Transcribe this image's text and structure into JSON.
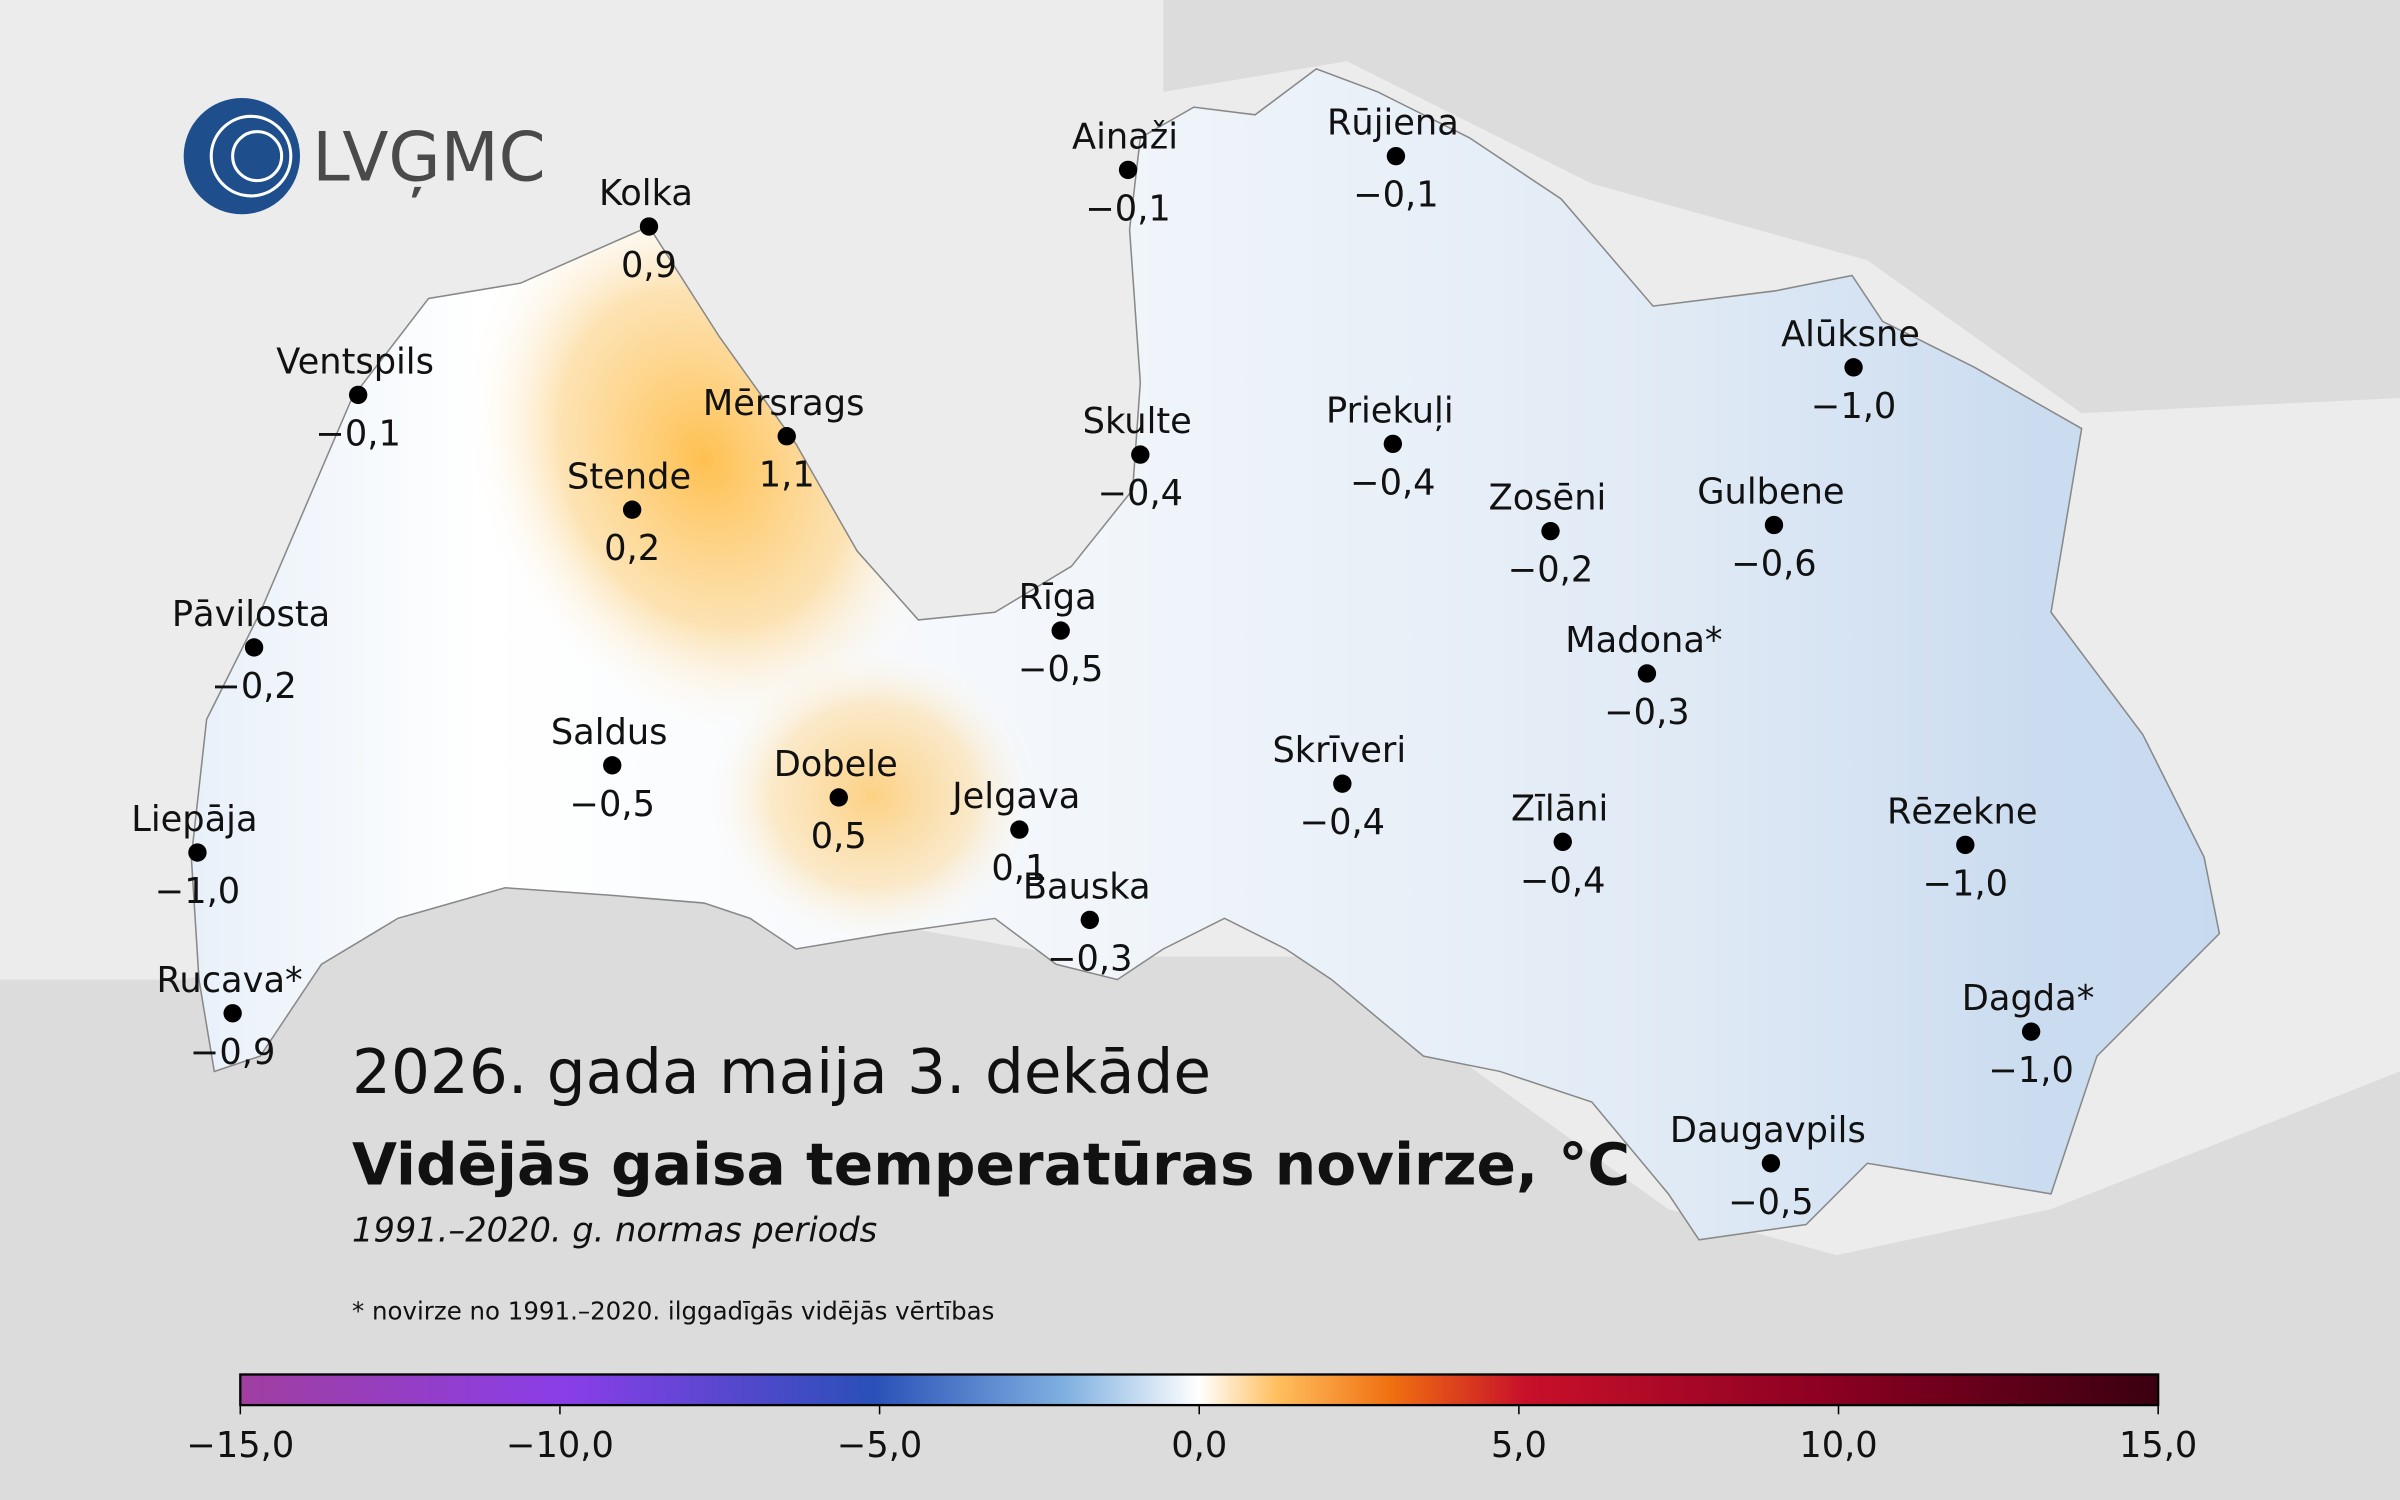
{
  "logo": "LVĢMC",
  "stations": [
    {
      "name": "Kolka",
      "value": "0,9"
    },
    {
      "name": "Ventspils",
      "value": "−0,1"
    },
    {
      "name": "Mērsrags",
      "value": "1,1"
    },
    {
      "name": "Stende",
      "value": "0,2"
    },
    {
      "name": "Pāvilosta",
      "value": "−0,2"
    },
    {
      "name": "Saldus",
      "value": "−0,5"
    },
    {
      "name": "Dobele",
      "value": "0,5"
    },
    {
      "name": "Jelgava",
      "value": "0,1"
    },
    {
      "name": "Liepāja",
      "value": "−1,0"
    },
    {
      "name": "Rucava*",
      "value": "−0,9"
    },
    {
      "name": "Ainaži",
      "value": "−0,1"
    },
    {
      "name": "Rūjiena",
      "value": "−0,1"
    },
    {
      "name": "Skulte",
      "value": "−0,4"
    },
    {
      "name": "Priekuļi",
      "value": "−0,4"
    },
    {
      "name": "Rīga",
      "value": "−0,5"
    },
    {
      "name": "Zosēni",
      "value": "−0,2"
    },
    {
      "name": "Gulbene",
      "value": "−0,6"
    },
    {
      "name": "Alūksne",
      "value": "−1,0"
    },
    {
      "name": "Madona*",
      "value": "−0,3"
    },
    {
      "name": "Skrīveri",
      "value": "−0,4"
    },
    {
      "name": "Zīlāni",
      "value": "−0,4"
    },
    {
      "name": "Bauska",
      "value": "−0,3"
    },
    {
      "name": "Rēzekne",
      "value": "−1,0"
    },
    {
      "name": "Dagda*",
      "value": "−1,0"
    },
    {
      "name": "Daugavpils",
      "value": "−0,5"
    }
  ],
  "period": "2026. gada maija 3. dekāde",
  "title": "Vidējās gaisa temperatūras novirze, °C",
  "subtitle": "1991.–2020. g. normas periods",
  "footnote": "* novirze no 1991.–2020. ilggadīgās vidējās vērtības",
  "colorbar": {
    "min": -15,
    "max": 15,
    "ticks": [
      {
        "value": -15,
        "label": "−15,0"
      },
      {
        "value": -10,
        "label": "−10,0"
      },
      {
        "value": -5,
        "label": "−5,0"
      },
      {
        "value": 0,
        "label": "0,0"
      },
      {
        "value": 5,
        "label": "5,0"
      },
      {
        "value": 10,
        "label": "10,0"
      },
      {
        "value": 15,
        "label": "15,0"
      }
    ]
  }
}
